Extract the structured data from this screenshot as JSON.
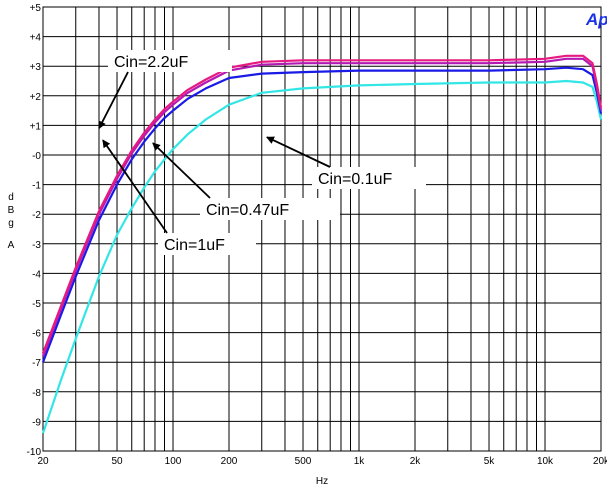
{
  "logo_text": "Ap",
  "chart_data": {
    "type": "line",
    "x_scale": "log",
    "xlim": [
      20,
      20000
    ],
    "ylim": [
      -10,
      5
    ],
    "xlabel": "Hz",
    "ylabel": "dBgA",
    "grid": true,
    "x_ticks": [
      {
        "value": 20,
        "label": "20"
      },
      {
        "value": 50,
        "label": "50"
      },
      {
        "value": 100,
        "label": "100"
      },
      {
        "value": 200,
        "label": "200"
      },
      {
        "value": 500,
        "label": "500"
      },
      {
        "value": 1000,
        "label": "1k"
      },
      {
        "value": 2000,
        "label": "2k"
      },
      {
        "value": 5000,
        "label": "5k"
      },
      {
        "value": 10000,
        "label": "10k"
      },
      {
        "value": 20000,
        "label": "20k"
      }
    ],
    "y_ticks": [
      {
        "value": 5,
        "label": "+5"
      },
      {
        "value": 4,
        "label": "+4"
      },
      {
        "value": 3,
        "label": "+3"
      },
      {
        "value": 2,
        "label": "+2"
      },
      {
        "value": 1,
        "label": "+1"
      },
      {
        "value": 0,
        "label": "-0"
      },
      {
        "value": -1,
        "label": "-1"
      },
      {
        "value": -2,
        "label": "-2"
      },
      {
        "value": -3,
        "label": "-3"
      },
      {
        "value": -4,
        "label": "-4"
      },
      {
        "value": -5,
        "label": "-5"
      },
      {
        "value": -6,
        "label": "-6"
      },
      {
        "value": -7,
        "label": "-7"
      },
      {
        "value": -8,
        "label": "-8"
      },
      {
        "value": -9,
        "label": "-9"
      },
      {
        "value": -10,
        "label": "-10"
      }
    ],
    "series": [
      {
        "name": "Cin=0.1uF",
        "color": "#33e6e6",
        "x": [
          20,
          25,
          30,
          40,
          50,
          60,
          70,
          80,
          90,
          100,
          120,
          150,
          200,
          300,
          500,
          1000,
          2000,
          5000,
          10000,
          13000,
          16000,
          18000,
          19000,
          20000
        ],
        "y": [
          -9.4,
          -7.6,
          -6.2,
          -4.1,
          -2.7,
          -1.8,
          -1.1,
          -0.55,
          -0.15,
          0.2,
          0.7,
          1.2,
          1.7,
          2.1,
          2.25,
          2.35,
          2.4,
          2.45,
          2.45,
          2.5,
          2.45,
          2.3,
          1.8,
          1.2
        ]
      },
      {
        "name": "Cin=0.47uF",
        "color": "#1a1ae6",
        "x": [
          20,
          25,
          30,
          40,
          50,
          60,
          70,
          80,
          90,
          100,
          120,
          150,
          200,
          300,
          500,
          1000,
          2000,
          5000,
          10000,
          13000,
          16000,
          18000,
          19000,
          20000
        ],
        "y": [
          -7.0,
          -5.4,
          -4.1,
          -2.2,
          -1.0,
          -0.15,
          0.45,
          0.9,
          1.25,
          1.5,
          1.9,
          2.25,
          2.6,
          2.75,
          2.8,
          2.85,
          2.85,
          2.85,
          2.9,
          2.95,
          2.9,
          2.7,
          2.1,
          1.4
        ]
      },
      {
        "name": "Cin=1uF",
        "color": "#b31ab3",
        "x": [
          20,
          25,
          30,
          40,
          50,
          60,
          70,
          80,
          90,
          100,
          120,
          150,
          200,
          300,
          500,
          1000,
          2000,
          5000,
          10000,
          13000,
          16000,
          18000,
          19000,
          20000
        ],
        "y": [
          -6.8,
          -5.2,
          -3.9,
          -2.0,
          -0.8,
          0.05,
          0.65,
          1.1,
          1.45,
          1.7,
          2.1,
          2.45,
          2.85,
          3.05,
          3.1,
          3.1,
          3.1,
          3.1,
          3.15,
          3.25,
          3.25,
          3.0,
          2.3,
          1.5
        ]
      },
      {
        "name": "Cin=2.2uF",
        "color": "#e61a80",
        "x": [
          20,
          25,
          30,
          40,
          50,
          60,
          70,
          80,
          90,
          100,
          120,
          150,
          200,
          300,
          500,
          1000,
          2000,
          5000,
          10000,
          13000,
          16000,
          18000,
          19000,
          20000
        ],
        "y": [
          -6.7,
          -5.1,
          -3.8,
          -1.9,
          -0.7,
          0.15,
          0.75,
          1.2,
          1.55,
          1.8,
          2.2,
          2.55,
          2.95,
          3.15,
          3.2,
          3.2,
          3.2,
          3.2,
          3.25,
          3.35,
          3.35,
          3.1,
          2.4,
          1.6
        ]
      }
    ],
    "annotations": [
      {
        "label": "Cin=2.2uF",
        "target": [
          40,
          0.9
        ]
      },
      {
        "label": "Cin=1uF",
        "target": [
          42,
          0.5
        ]
      },
      {
        "label": "Cin=0.47uF",
        "target": [
          78,
          0.4
        ]
      },
      {
        "label": "Cin=0.1uF",
        "target": [
          320,
          0.6
        ]
      }
    ]
  }
}
